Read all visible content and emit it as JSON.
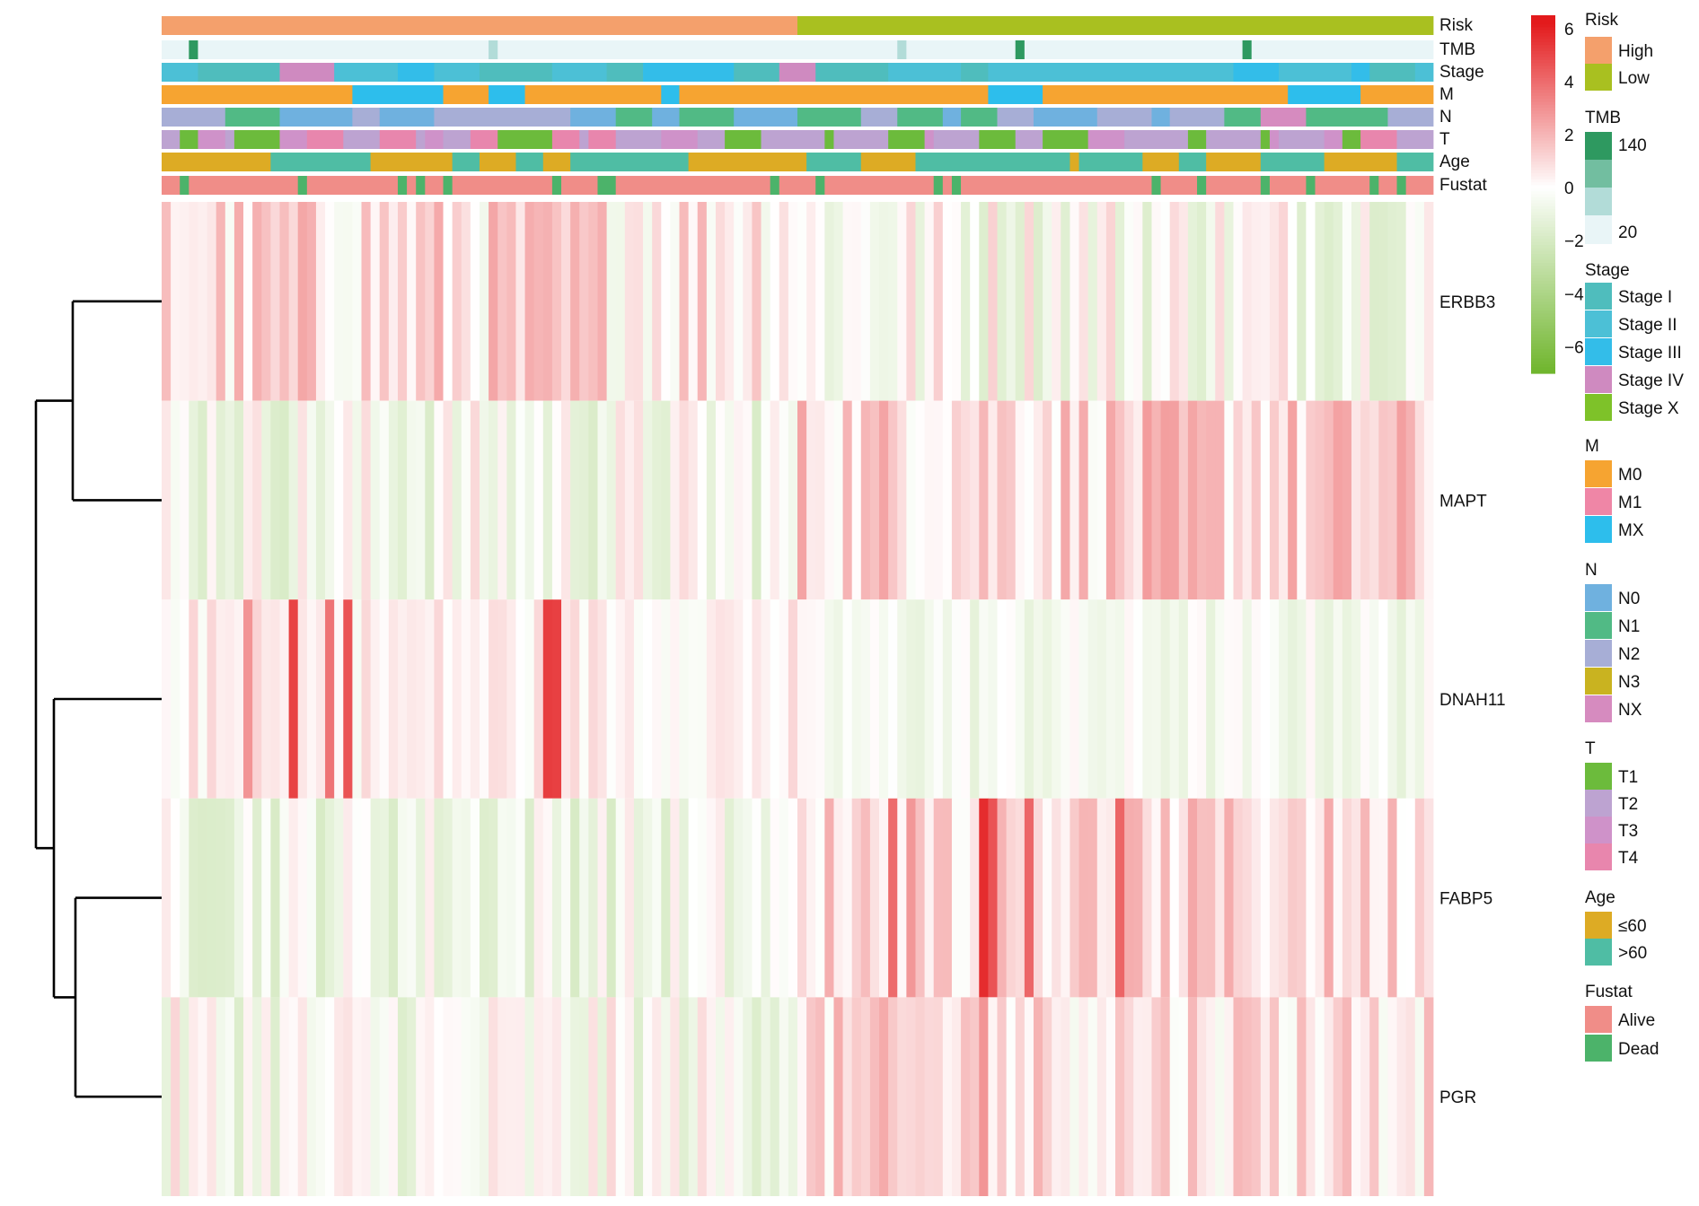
{
  "chart_data": {
    "type": "heatmap",
    "n_samples": 140,
    "genes": [
      "ERBB3",
      "MAPT",
      "DNAH11",
      "FABP5",
      "PGR"
    ],
    "gene_order_by_cluster": [
      "ERBB3",
      "MAPT",
      "DNAH11",
      "FABP5",
      "PGR"
    ],
    "annotation_tracks": [
      "Risk",
      "TMB",
      "Stage",
      "M",
      "N",
      "T",
      "Age",
      "Fustat"
    ],
    "colorbar": {
      "ticks": [
        6,
        4,
        2,
        0,
        -2,
        -4,
        -6
      ],
      "tick_labels": [
        "6",
        "4",
        "2",
        "0",
        "−2",
        "−4",
        "−6"
      ],
      "range": [
        -7,
        6.5
      ],
      "colors": [
        "#6fb52c",
        "#ffffff",
        "#e31a1c"
      ]
    },
    "legends": [
      {
        "title": "Risk",
        "items": [
          {
            "label": "High",
            "color": "#f4a06c"
          },
          {
            "label": "Low",
            "color": "#a9c020"
          }
        ]
      },
      {
        "title": "TMB",
        "type": "continuous",
        "items": [
          {
            "label": "140",
            "color": "#2e9960"
          },
          {
            "label": "",
            "color": "#72bea0"
          },
          {
            "label": "",
            "color": "#b2dcd8"
          },
          {
            "label": "20",
            "color": "#e9f5f7"
          }
        ]
      },
      {
        "title": "Stage",
        "items": [
          {
            "label": "Stage I",
            "color": "#4fbdbd"
          },
          {
            "label": "Stage II",
            "color": "#4cc0d6"
          },
          {
            "label": "Stage III",
            "color": "#33bde9"
          },
          {
            "label": "Stage IV",
            "color": "#cf8ac0"
          },
          {
            "label": "Stage X",
            "color": "#7ec229"
          }
        ]
      },
      {
        "title": "M",
        "items": [
          {
            "label": "M0",
            "color": "#f6a431"
          },
          {
            "label": "M1",
            "color": "#ef86a6"
          },
          {
            "label": "MX",
            "color": "#2dbeec"
          }
        ]
      },
      {
        "title": "N",
        "items": [
          {
            "label": "N0",
            "color": "#6fb1df"
          },
          {
            "label": "N1",
            "color": "#51ba85"
          },
          {
            "label": "N2",
            "color": "#a7aed6"
          },
          {
            "label": "N3",
            "color": "#c9b320"
          },
          {
            "label": "NX",
            "color": "#d68bbf"
          }
        ]
      },
      {
        "title": "T",
        "items": [
          {
            "label": "T1",
            "color": "#6cbb3c"
          },
          {
            "label": "T2",
            "color": "#bda3d1"
          },
          {
            "label": "T3",
            "color": "#cf92c9"
          },
          {
            "label": "T4",
            "color": "#e886ad"
          }
        ]
      },
      {
        "title": "Age",
        "items": [
          {
            "label": "≤60",
            "color": "#ddab24"
          },
          {
            "label": ">60",
            "color": "#4fbda4"
          }
        ]
      },
      {
        "title": "Fustat",
        "items": [
          {
            "label": "Alive",
            "color": "#f08d88"
          },
          {
            "label": "Dead",
            "color": "#4cb36a"
          }
        ]
      }
    ],
    "risk_split": {
      "High": 70,
      "Low": 70
    },
    "legend_placement": "right",
    "dendrogram": "left, rows clustered: ((ERBB3, MAPT), (DNAH11, (FABP5, PGR)))"
  }
}
